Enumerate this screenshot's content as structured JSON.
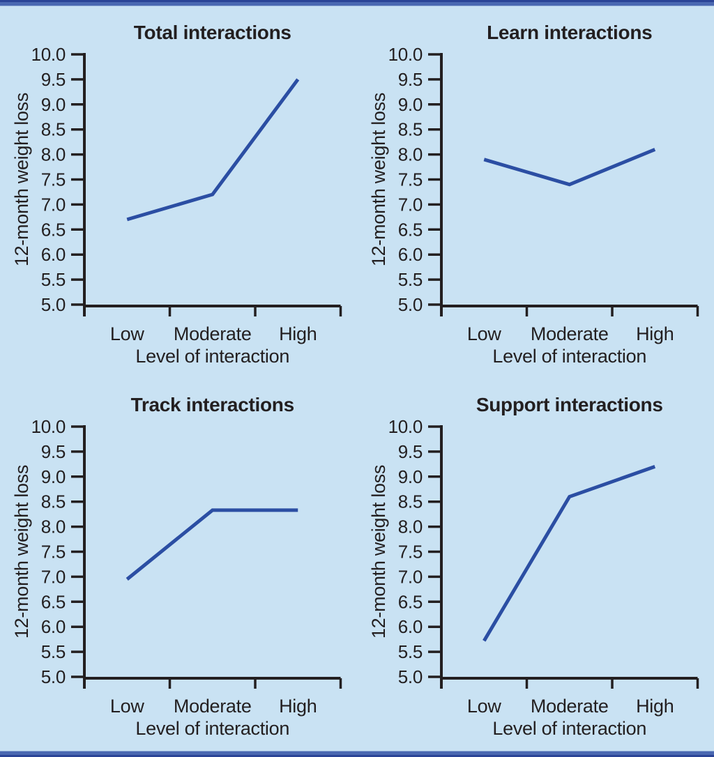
{
  "page": {
    "background_color": "#c9e2f3",
    "top_bar_colors": [
      "#2a4396",
      "#4a68b1",
      "#96b1d9"
    ],
    "bottom_bar_colors": [
      "#96b1d9",
      "#4a68b1",
      "#2a4396"
    ]
  },
  "colors": {
    "line": "#2b4ea3",
    "axis": "#231f20",
    "text": "#231f20"
  },
  "chart_data": [
    {
      "type": "line",
      "title": "Total interactions",
      "categories": [
        "Low",
        "Moderate",
        "High"
      ],
      "values": [
        6.7,
        7.2,
        9.5
      ],
      "xlabel": "Level of interaction",
      "ylabel": "12-month weight loss",
      "ylim": [
        5.0,
        10.0
      ],
      "ytick_step": 0.5,
      "ytick_labels": [
        "10.0",
        "9.5",
        "9.0",
        "8.5",
        "8.0",
        "7.5",
        "7.0",
        "6.5",
        "6.0",
        "5.5",
        "5.0"
      ],
      "grid": false,
      "legend": "none"
    },
    {
      "type": "line",
      "title": "Learn interactions",
      "categories": [
        "Low",
        "Moderate",
        "High"
      ],
      "values": [
        7.9,
        7.4,
        8.1
      ],
      "xlabel": "Level of interaction",
      "ylabel": "12-month weight loss",
      "ylim": [
        5.0,
        10.0
      ],
      "ytick_step": 0.5,
      "ytick_labels": [
        "10.0",
        "9.5",
        "9.0",
        "8.5",
        "8.0",
        "7.5",
        "7.0",
        "6.5",
        "6.0",
        "5.5",
        "5.0"
      ],
      "grid": false,
      "legend": "none"
    },
    {
      "type": "line",
      "title": "Track interactions",
      "categories": [
        "Low",
        "Moderate",
        "High"
      ],
      "values": [
        6.95,
        8.33,
        8.33
      ],
      "xlabel": "Level of interaction",
      "ylabel": "12-month weight loss",
      "ylim": [
        5.0,
        10.0
      ],
      "ytick_step": 0.5,
      "ytick_labels": [
        "10.0",
        "9.5",
        "9.0",
        "8.5",
        "8.0",
        "7.5",
        "7.0",
        "6.5",
        "6.0",
        "5.5",
        "5.0"
      ],
      "grid": false,
      "legend": "none"
    },
    {
      "type": "line",
      "title": "Support interactions",
      "categories": [
        "Low",
        "Moderate",
        "High"
      ],
      "values": [
        5.72,
        8.6,
        9.2
      ],
      "xlabel": "Level of interaction",
      "ylabel": "12-month weight loss",
      "ylim": [
        5.0,
        10.0
      ],
      "ytick_step": 0.5,
      "ytick_labels": [
        "10.0",
        "9.5",
        "9.0",
        "8.5",
        "8.0",
        "7.5",
        "7.0",
        "6.5",
        "6.0",
        "5.5",
        "5.0"
      ],
      "grid": false,
      "legend": "none"
    }
  ]
}
